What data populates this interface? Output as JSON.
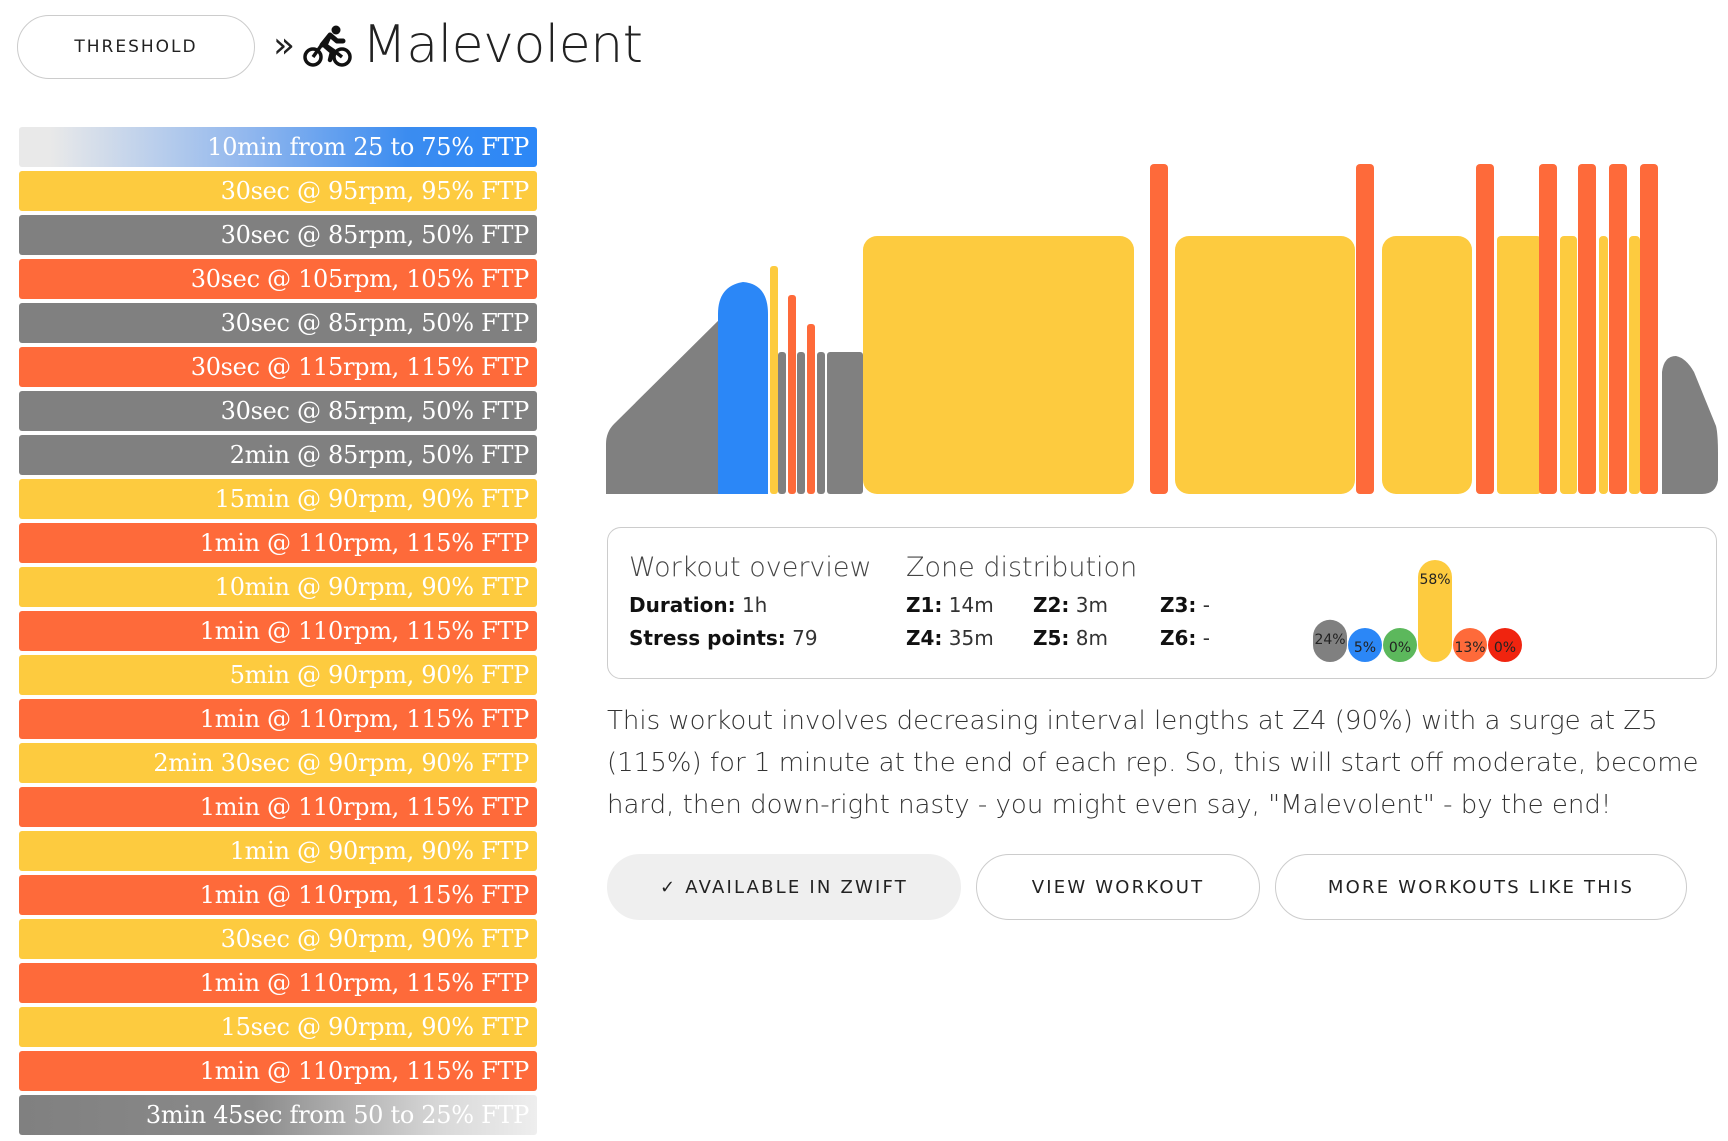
{
  "header": {
    "category_label": "THRESHOLD",
    "separator": "»",
    "sport_icon": "cycling-icon",
    "title": "Malevolent"
  },
  "colors": {
    "z1": "#808080",
    "z2": "#2B87F7",
    "z3": "#5CB85C",
    "z4": "#FDCB3F",
    "z5": "#FE6A3A",
    "z6": "#F0240F"
  },
  "intervals": [
    {
      "label": "10min from 25 to 75% FTP",
      "zone": "warmup"
    },
    {
      "label": "30sec @ 95rpm, 95% FTP",
      "zone": "z4"
    },
    {
      "label": "30sec @ 85rpm, 50% FTP",
      "zone": "z1"
    },
    {
      "label": "30sec @ 105rpm, 105% FTP",
      "zone": "z5"
    },
    {
      "label": "30sec @ 85rpm, 50% FTP",
      "zone": "z1"
    },
    {
      "label": "30sec @ 115rpm, 115% FTP",
      "zone": "z5"
    },
    {
      "label": "30sec @ 85rpm, 50% FTP",
      "zone": "z1"
    },
    {
      "label": "2min @ 85rpm, 50% FTP",
      "zone": "z1"
    },
    {
      "label": "15min @ 90rpm, 90% FTP",
      "zone": "z4"
    },
    {
      "label": "1min @ 110rpm, 115% FTP",
      "zone": "z5"
    },
    {
      "label": "10min @ 90rpm, 90% FTP",
      "zone": "z4"
    },
    {
      "label": "1min @ 110rpm, 115% FTP",
      "zone": "z5"
    },
    {
      "label": "5min @ 90rpm, 90% FTP",
      "zone": "z4"
    },
    {
      "label": "1min @ 110rpm, 115% FTP",
      "zone": "z5"
    },
    {
      "label": "2min 30sec @ 90rpm, 90% FTP",
      "zone": "z4"
    },
    {
      "label": "1min @ 110rpm, 115% FTP",
      "zone": "z5"
    },
    {
      "label": "1min @ 90rpm, 90% FTP",
      "zone": "z4"
    },
    {
      "label": "1min @ 110rpm, 115% FTP",
      "zone": "z5"
    },
    {
      "label": "30sec @ 90rpm, 90% FTP",
      "zone": "z4"
    },
    {
      "label": "1min @ 110rpm, 115% FTP",
      "zone": "z5"
    },
    {
      "label": "15sec @ 90rpm, 90% FTP",
      "zone": "z4"
    },
    {
      "label": "1min @ 110rpm, 115% FTP",
      "zone": "z5"
    },
    {
      "label": "3min 45sec from 50 to 25% FTP",
      "zone": "cooldown"
    }
  ],
  "overview": {
    "heading": "Workout overview",
    "duration_label": "Duration:",
    "duration_value": "1h",
    "stress_label": "Stress points:",
    "stress_value": "79"
  },
  "zones": {
    "heading": "Zone distribution",
    "items": [
      {
        "label": "Z1:",
        "value": "14m"
      },
      {
        "label": "Z2:",
        "value": "3m"
      },
      {
        "label": "Z3:",
        "value": "-"
      },
      {
        "label": "Z4:",
        "value": "35m"
      },
      {
        "label": "Z5:",
        "value": "8m"
      },
      {
        "label": "Z6:",
        "value": "-"
      }
    ]
  },
  "chart_data": {
    "type": "bar",
    "categories": [
      "Z1",
      "Z2",
      "Z3",
      "Z4",
      "Z5",
      "Z6"
    ],
    "values": [
      24,
      5,
      0,
      58,
      13,
      0
    ],
    "labels": [
      "24%",
      "5%",
      "0%",
      "58%",
      "13%",
      "0%"
    ],
    "colors": [
      "#808080",
      "#2B87F7",
      "#5CB85C",
      "#FDCB3F",
      "#FE6A3A",
      "#F0240F"
    ]
  },
  "description": "This workout involves decreasing interval lengths at Z4 (90%) with a surge at Z5 (115%) for 1 minute at the end of each rep. So, this will start off moderate, become hard, then down-right nasty - you might even say, \"Malevolent\" - by the end!",
  "actions": {
    "available_label": "✓ AVAILABLE IN ZWIFT",
    "view_label": "VIEW WORKOUT",
    "more_label": "MORE WORKOUTS LIKE THIS"
  }
}
